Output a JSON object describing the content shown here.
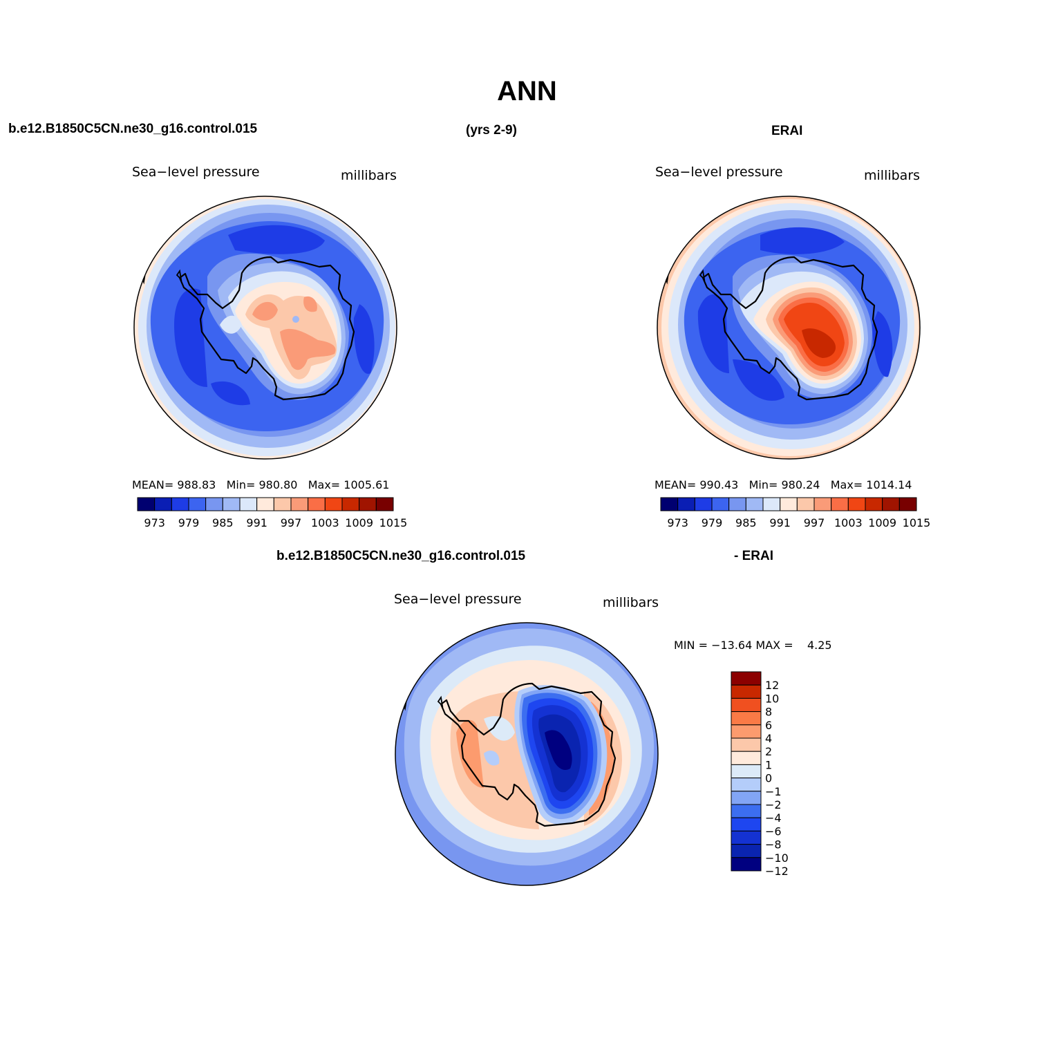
{
  "title": "ANN",
  "header": {
    "case_name": "b.e12.B1850C5CN.ne30_g16.control.015",
    "years": "(yrs 2-9)",
    "obs_name": "ERAI"
  },
  "diff_header": {
    "case_name": "b.e12.B1850C5CN.ne30_g16.control.015",
    "obs_label": "- ERAI"
  },
  "panels": [
    {
      "variable": "Sea−level pressure",
      "units": "millibars",
      "stats": {
        "mean_label": "MEAN=",
        "mean": "988.83",
        "min_label": "Min=",
        "min": "980.80",
        "max_label": "Max=",
        "max": "1005.61"
      },
      "colorbar_labels": [
        "973",
        "979",
        "985",
        "991",
        "997",
        "1003",
        "1009",
        "1015"
      ]
    },
    {
      "variable": "Sea−level pressure",
      "units": "millibars",
      "stats": {
        "mean_label": "MEAN=",
        "mean": "990.43",
        "min_label": "Min=",
        "min": "980.24",
        "max_label": "Max=",
        "max": "1014.14"
      },
      "colorbar_labels": [
        "973",
        "979",
        "985",
        "991",
        "997",
        "1003",
        "1009",
        "1015"
      ]
    },
    {
      "variable": "Sea−level pressure",
      "units": "millibars",
      "stats": {
        "min_label": "MIN =",
        "min": "−13.64",
        "max_label": "MAX =",
        "max": "4.25"
      },
      "colorbar_labels": [
        "12",
        "10",
        "8",
        "6",
        "4",
        "2",
        "1",
        "0",
        "−1",
        "−2",
        "−4",
        "−6",
        "−8",
        "−10",
        "−12"
      ]
    }
  ],
  "colors": {
    "abs_scale": [
      "#000070",
      "#0a1eb4",
      "#1e3ce6",
      "#3c64f0",
      "#7896f0",
      "#a0b9f5",
      "#dce8fa",
      "#ffeadc",
      "#fcc8aa",
      "#fa9b78",
      "#fa6e46",
      "#f04614",
      "#c82800",
      "#a01400",
      "#780000"
    ],
    "diff_scale": [
      "#000080",
      "#0a24b0",
      "#1432d2",
      "#1e46f0",
      "#3c6ef0",
      "#82a5f5",
      "#b4cdfa",
      "#dceaf8",
      "#ffeadc",
      "#fcc8aa",
      "#fc9b6e",
      "#fa7a46",
      "#f05020",
      "#c82800",
      "#8c0000"
    ]
  }
}
